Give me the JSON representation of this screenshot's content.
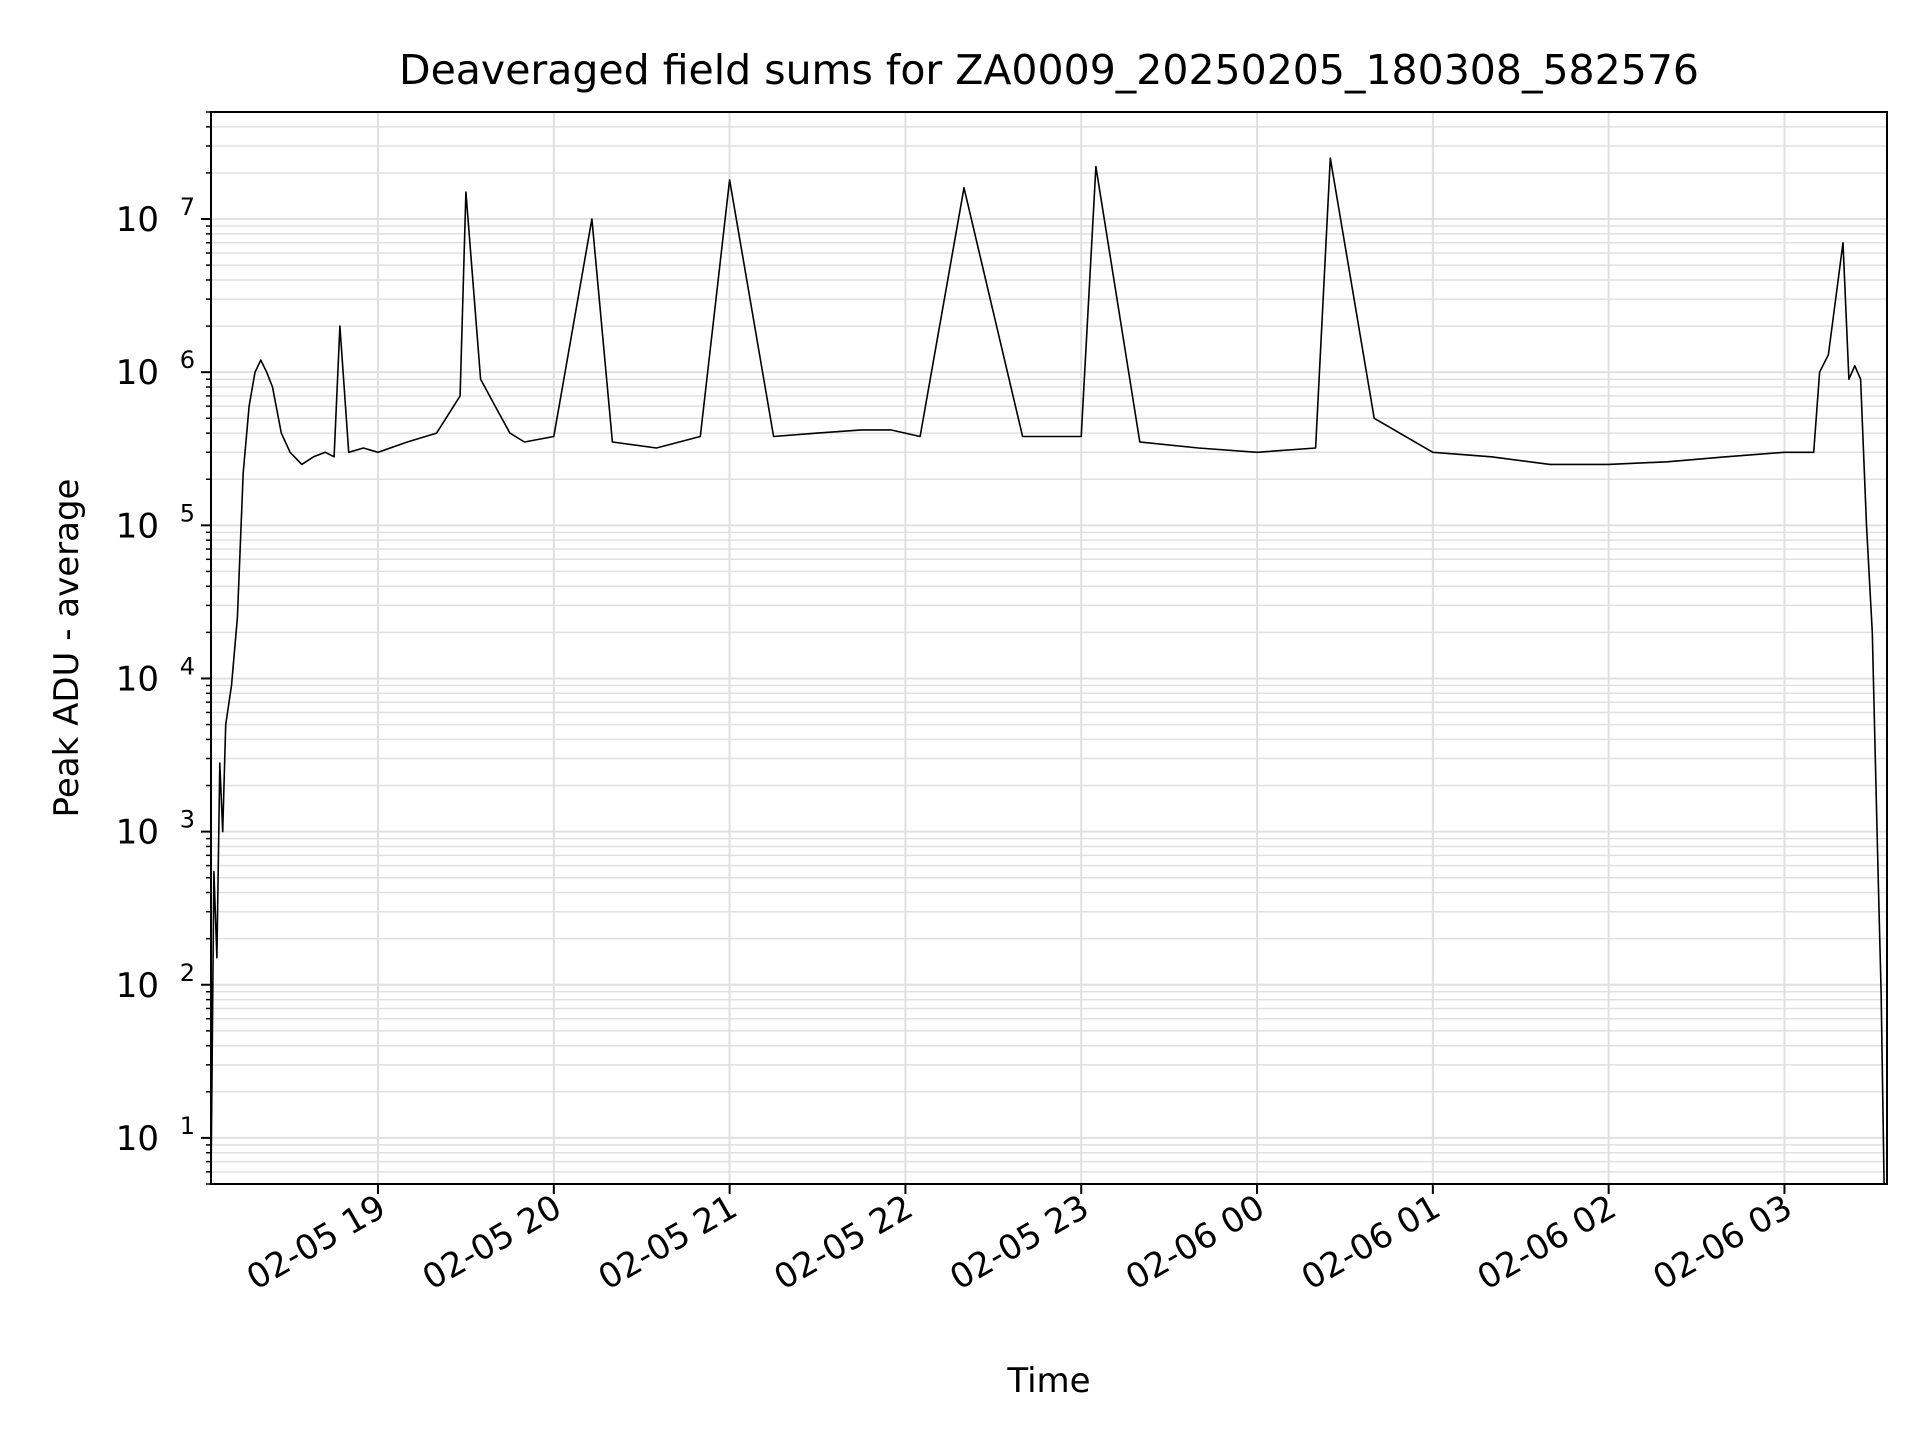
{
  "chart_data": {
    "type": "line",
    "title": "Deaveraged field sums for ZA0009_20250205_180308_582576",
    "xlabel": "Time",
    "ylabel": "Peak ADU - average",
    "yscale": "log",
    "ylim": [
      5,
      50000000
    ],
    "xlim": [
      "2025-02-05 18:03",
      "2025-02-06 03:35"
    ],
    "grid": "major and minor",
    "grid_color": "#e0e0e0",
    "line_color": "#000000",
    "x_tick_labels": [
      "02-05 19",
      "02-05 20",
      "02-05 21",
      "02-05 22",
      "02-05 23",
      "02-06 00",
      "02-06 01",
      "02-06 02",
      "02-06 03"
    ],
    "y_tick_labels": [
      {
        "base": "10",
        "exp": "1"
      },
      {
        "base": "10",
        "exp": "2"
      },
      {
        "base": "10",
        "exp": "3"
      },
      {
        "base": "10",
        "exp": "4"
      },
      {
        "base": "10",
        "exp": "5"
      },
      {
        "base": "10",
        "exp": "6"
      },
      {
        "base": "10",
        "exp": "7"
      }
    ],
    "series": [
      {
        "x": [
          "2025-02-05 18:03",
          "2025-02-05 18:04",
          "2025-02-05 18:05",
          "2025-02-05 18:06",
          "2025-02-05 18:07",
          "2025-02-05 18:08",
          "2025-02-05 18:10",
          "2025-02-05 18:12",
          "2025-02-05 18:14",
          "2025-02-05 18:16",
          "2025-02-05 18:18",
          "2025-02-05 18:20",
          "2025-02-05 18:22",
          "2025-02-05 18:24",
          "2025-02-05 18:27",
          "2025-02-05 18:30",
          "2025-02-05 18:34",
          "2025-02-05 18:38",
          "2025-02-05 18:42",
          "2025-02-05 18:45",
          "2025-02-05 18:47",
          "2025-02-05 18:50",
          "2025-02-05 18:55",
          "2025-02-05 19:00",
          "2025-02-05 19:10",
          "2025-02-05 19:20",
          "2025-02-05 19:28",
          "2025-02-05 19:30",
          "2025-02-05 19:35",
          "2025-02-05 19:40",
          "2025-02-05 19:45",
          "2025-02-05 19:50",
          "2025-02-05 20:00",
          "2025-02-05 20:13",
          "2025-02-05 20:20",
          "2025-02-05 20:35",
          "2025-02-05 20:50",
          "2025-02-05 21:00",
          "2025-02-05 21:15",
          "2025-02-05 21:30",
          "2025-02-05 21:45",
          "2025-02-05 21:55",
          "2025-02-05 22:05",
          "2025-02-05 22:20",
          "2025-02-05 22:40",
          "2025-02-05 23:00",
          "2025-02-05 23:05",
          "2025-02-05 23:20",
          "2025-02-05 23:40",
          "2025-02-06 00:00",
          "2025-02-06 00:20",
          "2025-02-06 00:25",
          "2025-02-06 00:40",
          "2025-02-06 01:00",
          "2025-02-06 01:20",
          "2025-02-06 01:40",
          "2025-02-06 02:00",
          "2025-02-06 02:20",
          "2025-02-06 02:40",
          "2025-02-06 03:00",
          "2025-02-06 03:10",
          "2025-02-06 03:12",
          "2025-02-06 03:15",
          "2025-02-06 03:20",
          "2025-02-06 03:22",
          "2025-02-06 03:24",
          "2025-02-06 03:26",
          "2025-02-06 03:28",
          "2025-02-06 03:30",
          "2025-02-06 03:31",
          "2025-02-06 03:32",
          "2025-02-06 03:33",
          "2025-02-06 03:34"
        ],
        "y": [
          5,
          550,
          150,
          2800,
          1000,
          5000,
          9000,
          25000,
          220000,
          600000,
          1000000,
          1200000,
          1000000,
          800000,
          400000,
          300000,
          250000,
          280000,
          300000,
          280000,
          2000000,
          300000,
          320000,
          300000,
          350000,
          400000,
          700000,
          15000000,
          900000,
          600000,
          400000,
          350000,
          380000,
          10000000,
          350000,
          320000,
          380000,
          18000000,
          380000,
          400000,
          420000,
          420000,
          380000,
          16000000,
          380000,
          380000,
          22000000,
          350000,
          320000,
          300000,
          320000,
          25000000,
          500000,
          300000,
          280000,
          250000,
          250000,
          260000,
          280000,
          300000,
          300000,
          1000000,
          1300000,
          7000000,
          900000,
          1100000,
          900000,
          100000,
          20000,
          3000,
          500,
          90,
          5
        ]
      }
    ]
  }
}
